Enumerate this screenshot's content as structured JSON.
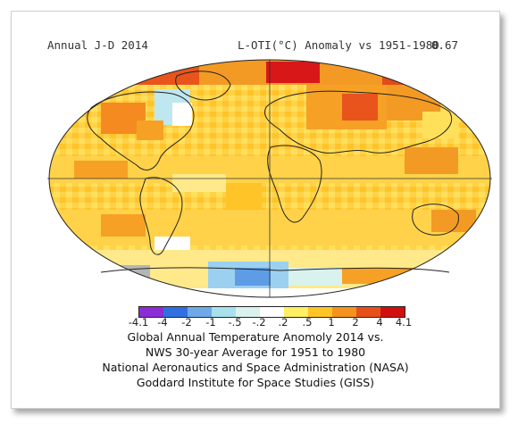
{
  "header": {
    "left": "Annual J-D 2014",
    "center": "L-OTI(°C) Anomaly vs 1951-1980",
    "right": "0.67"
  },
  "legend": {
    "colors": [
      "#8b2cd6",
      "#2f6fe0",
      "#6fa9ea",
      "#a8e0ee",
      "#d9f2ee",
      "#ffffff",
      "#ffef63",
      "#ffc426",
      "#f5921f",
      "#e8501b",
      "#d10f0f",
      "#7a0a0a"
    ],
    "ticks": [
      "-4.1",
      "-4",
      "-2",
      "-1",
      "-.5",
      "-.2",
      ".2",
      ".5",
      "1",
      "2",
      "4",
      "4.1"
    ]
  },
  "caption": [
    "Global Annual Temperature Anomoly 2014 vs.",
    "NWS 30-year Average for 1951 to 1980",
    "National Aeronautics and Space Administration (NASA)",
    "Goddard Institute for Space Studies (GISS)"
  ]
}
